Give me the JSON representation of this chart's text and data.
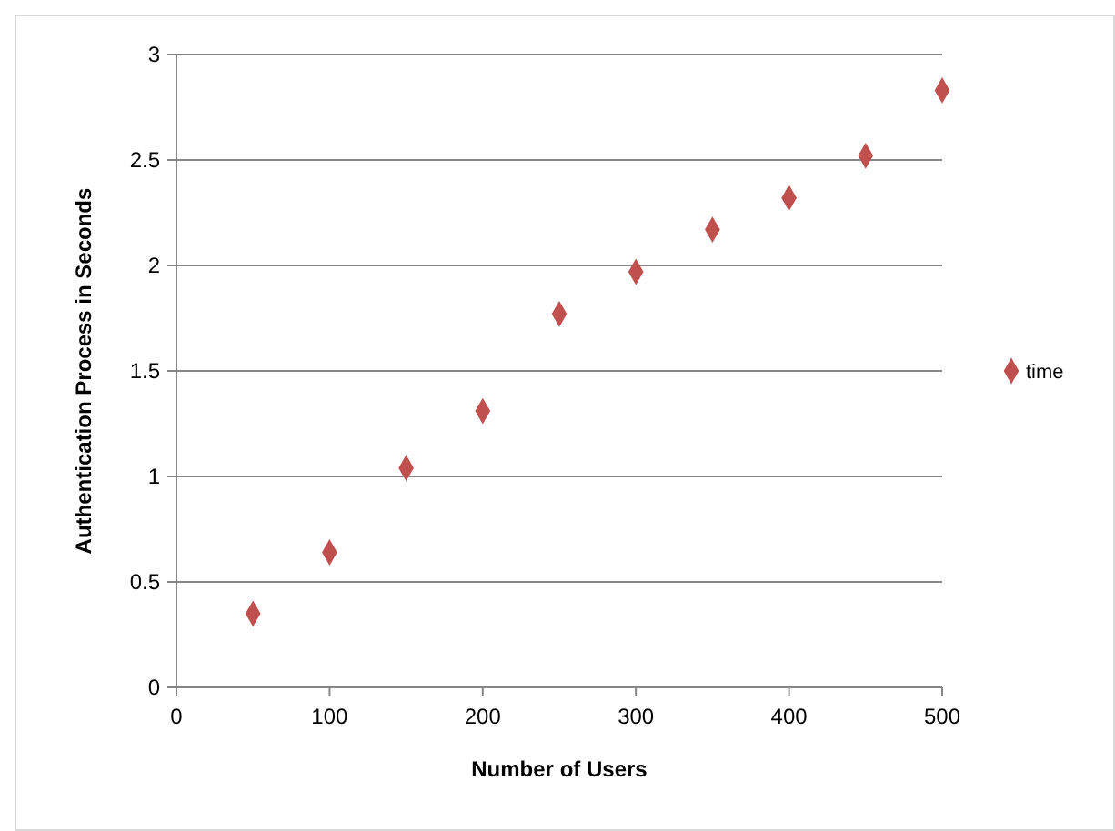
{
  "chart_data": {
    "type": "scatter",
    "xlabel": "Number of Users",
    "ylabel": "Authentication Process in Seconds",
    "x": [
      50,
      100,
      150,
      200,
      250,
      300,
      350,
      400,
      450,
      500
    ],
    "series": [
      {
        "name": "time",
        "color": "#c0504d",
        "values": [
          0.35,
          0.64,
          1.04,
          1.31,
          1.77,
          1.97,
          2.17,
          2.32,
          2.52,
          2.83
        ]
      }
    ],
    "xlim": [
      0,
      500
    ],
    "xticks": [
      0,
      100,
      200,
      300,
      400,
      500
    ],
    "ylim": [
      0,
      3
    ],
    "yticks": [
      0,
      0.5,
      1,
      1.5,
      2,
      2.5,
      3
    ],
    "grid": "y",
    "legend": "right",
    "marker": "diamond"
  }
}
